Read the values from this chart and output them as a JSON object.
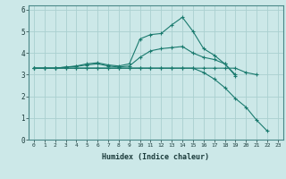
{
  "xlabel": "Humidex (Indice chaleur)",
  "bg_color": "#cce8e8",
  "grid_color": "#aad0d0",
  "line_color": "#1a7a6e",
  "xlim": [
    -0.5,
    23.5
  ],
  "ylim": [
    0,
    6.2
  ],
  "yticks": [
    0,
    1,
    2,
    3,
    4,
    5,
    6
  ],
  "xticks": [
    0,
    1,
    2,
    3,
    4,
    5,
    6,
    7,
    8,
    9,
    10,
    11,
    12,
    13,
    14,
    15,
    16,
    17,
    18,
    19,
    20,
    21,
    22,
    23
  ],
  "series": [
    {
      "x": [
        0,
        1,
        2,
        3,
        4,
        5,
        6,
        7,
        8,
        9,
        10,
        11,
        12,
        13,
        14,
        15,
        16,
        17,
        18,
        19
      ],
      "y": [
        3.3,
        3.3,
        3.3,
        3.35,
        3.4,
        3.5,
        3.55,
        3.45,
        3.4,
        3.5,
        4.65,
        4.85,
        4.9,
        5.3,
        5.65,
        5.0,
        4.2,
        3.9,
        3.5,
        2.95
      ]
    },
    {
      "x": [
        0,
        1,
        2,
        3,
        4,
        5,
        6,
        7,
        8,
        9,
        10,
        11,
        12,
        13,
        14,
        15,
        16,
        17,
        18,
        19
      ],
      "y": [
        3.3,
        3.3,
        3.3,
        3.35,
        3.38,
        3.45,
        3.5,
        3.4,
        3.35,
        3.4,
        3.8,
        4.1,
        4.2,
        4.25,
        4.3,
        4.0,
        3.8,
        3.7,
        3.5,
        3.0
      ]
    },
    {
      "x": [
        0,
        1,
        2,
        3,
        4,
        5,
        6,
        7,
        8,
        9,
        10,
        11,
        12,
        13,
        14,
        15,
        16,
        17,
        18,
        19,
        20,
        21
      ],
      "y": [
        3.3,
        3.3,
        3.3,
        3.3,
        3.3,
        3.3,
        3.3,
        3.3,
        3.3,
        3.3,
        3.3,
        3.3,
        3.3,
        3.3,
        3.3,
        3.3,
        3.3,
        3.3,
        3.3,
        3.3,
        3.1,
        3.0
      ]
    },
    {
      "x": [
        0,
        1,
        2,
        3,
        4,
        5,
        6,
        7,
        8,
        9,
        10,
        11,
        12,
        13,
        14,
        15,
        16,
        17,
        18,
        19,
        20,
        21,
        22
      ],
      "y": [
        3.3,
        3.3,
        3.3,
        3.3,
        3.3,
        3.3,
        3.3,
        3.3,
        3.3,
        3.3,
        3.3,
        3.3,
        3.3,
        3.3,
        3.3,
        3.3,
        3.1,
        2.8,
        2.4,
        1.9,
        1.5,
        0.9,
        0.4
      ]
    }
  ]
}
